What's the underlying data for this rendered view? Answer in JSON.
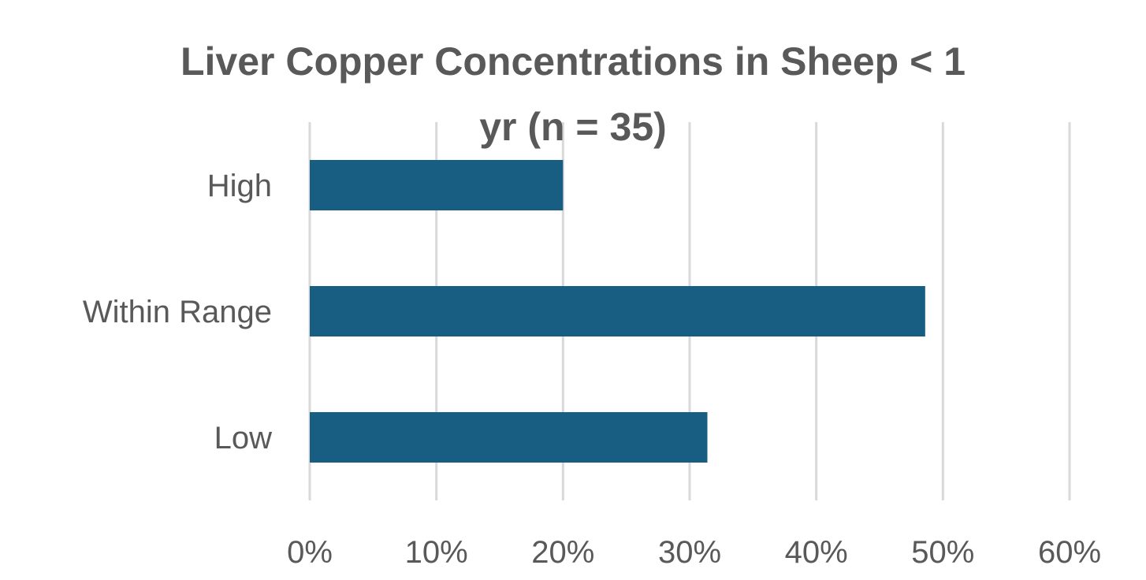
{
  "chart_data": {
    "type": "bar",
    "orientation": "horizontal",
    "title_lines": [
      "Liver Copper Concentrations in Sheep < 1",
      "yr (n = 35)"
    ],
    "categories": [
      "High",
      "Within Range",
      "Low"
    ],
    "values": [
      20,
      48.6,
      31.4
    ],
    "value_unit": "%",
    "xlim": [
      0,
      60
    ],
    "x_ticks": [
      "0%",
      "10%",
      "20%",
      "30%",
      "40%",
      "50%",
      "60%"
    ],
    "tick_values": [
      0,
      10,
      20,
      30,
      40,
      50,
      60
    ],
    "grid": true,
    "legend": "none",
    "bar_color": "#175e82"
  }
}
